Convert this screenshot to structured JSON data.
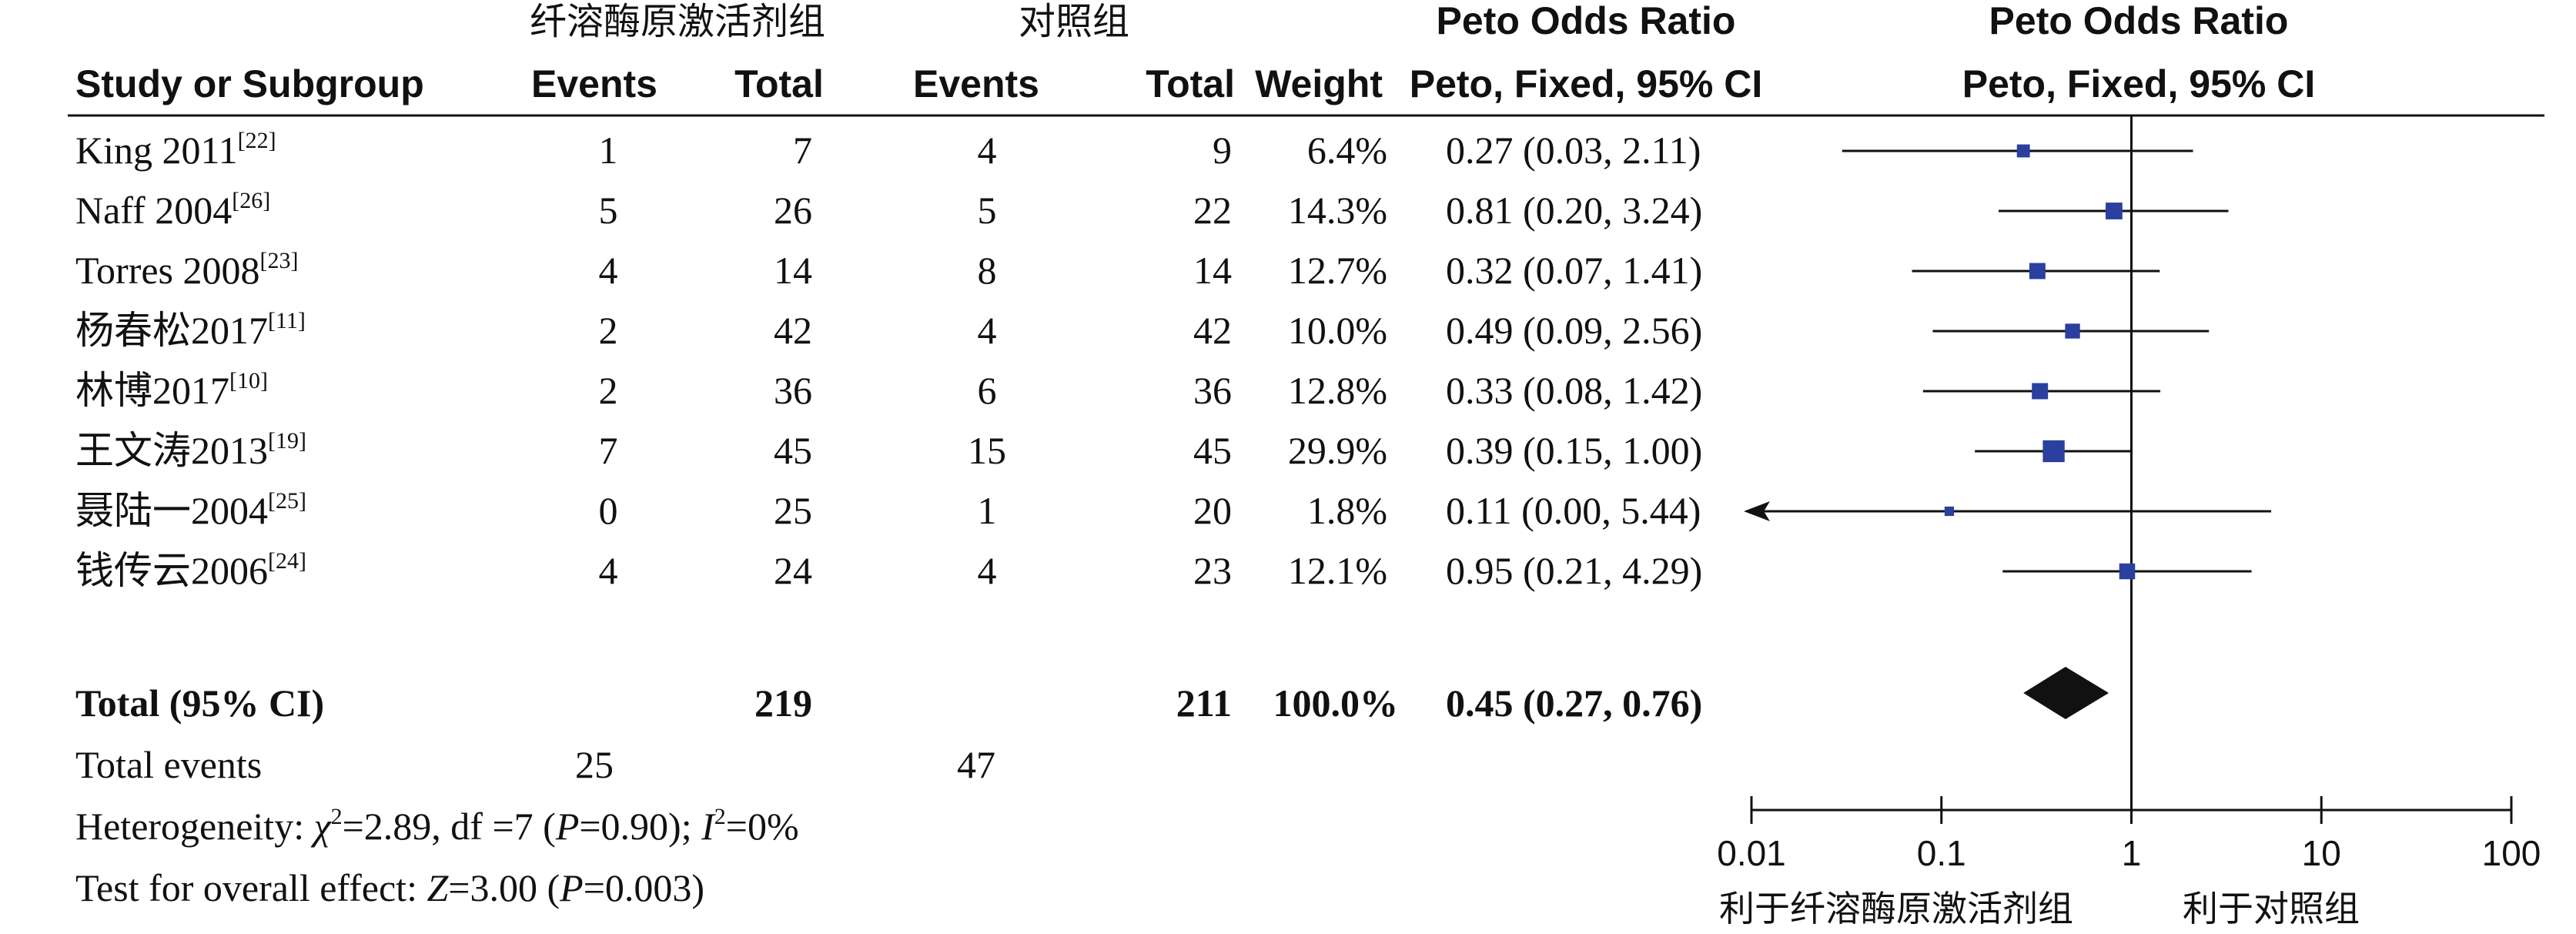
{
  "headers": {
    "study": "Study or Subgroup",
    "group1": "纤溶酶原激活剂组",
    "group2": "对照组",
    "events": "Events",
    "total": "Total",
    "weight": "Weight",
    "or_title": "Peto Odds Ratio",
    "or_subtitle": "Peto, Fixed, 95% CI",
    "plot_title": "Peto Odds Ratio",
    "plot_subtitle": "Peto, Fixed, 95% CI"
  },
  "summary": {
    "total_label": "Total (95% CI)",
    "total1": "219",
    "total2": "211",
    "weight": "100.0%",
    "ci_text": "0.45 (0.27, 0.76)",
    "events_label": "Total events",
    "events1": "25",
    "events2": "47",
    "heterogeneity": {
      "prefix": "Heterogeneity: ",
      "chi": "χ",
      "chi_sup": "2",
      "mid": "=2.89, df =7 (",
      "p": "P",
      "p_val": "=0.90); ",
      "i": "I",
      "i_sup": "2",
      "end": "=0%"
    },
    "overall": {
      "prefix": "Test for overall effect: ",
      "z": "Z",
      "z_val": "=3.00 (",
      "p": "P",
      "p_val": "=0.003)"
    }
  },
  "chart_data": {
    "type": "forest",
    "x_scale": "log",
    "xlim": [
      0.01,
      100
    ],
    "ticks": [
      "0.01",
      "0.1",
      "1",
      "10",
      "100"
    ],
    "x_label_left": "利于纤溶酶原激活剂组",
    "x_label_right": "利于对照组",
    "marker_color": "#2a3f9e",
    "studies": [
      {
        "name": "King 2011",
        "ref": "[22]",
        "e1": "1",
        "n1": "7",
        "e2": "4",
        "n2": "9",
        "weight": "6.4%",
        "ci_text": "0.27 (0.03, 2.11)",
        "or": 0.27,
        "lo": 0.03,
        "hi": 2.11,
        "w": 6.4,
        "arrow_left": false
      },
      {
        "name": "Naff 2004",
        "ref": "[26]",
        "e1": "5",
        "n1": "26",
        "e2": "5",
        "n2": "22",
        "weight": "14.3%",
        "ci_text": "0.81 (0.20, 3.24)",
        "or": 0.81,
        "lo": 0.2,
        "hi": 3.24,
        "w": 14.3,
        "arrow_left": false
      },
      {
        "name": "Torres 2008",
        "ref": "[23]",
        "e1": "4",
        "n1": "14",
        "e2": "8",
        "n2": "14",
        "weight": "12.7%",
        "ci_text": "0.32 (0.07, 1.41)",
        "or": 0.32,
        "lo": 0.07,
        "hi": 1.41,
        "w": 12.7,
        "arrow_left": false
      },
      {
        "name": "杨春松2017",
        "ref": "[11]",
        "e1": "2",
        "n1": "42",
        "e2": "4",
        "n2": "42",
        "weight": "10.0%",
        "ci_text": "0.49 (0.09, 2.56)",
        "or": 0.49,
        "lo": 0.09,
        "hi": 2.56,
        "w": 10.0,
        "arrow_left": false
      },
      {
        "name": "林博2017",
        "ref": "[10]",
        "e1": "2",
        "n1": "36",
        "e2": "6",
        "n2": "36",
        "weight": "12.8%",
        "ci_text": "0.33 (0.08, 1.42)",
        "or": 0.33,
        "lo": 0.08,
        "hi": 1.42,
        "w": 12.8,
        "arrow_left": false
      },
      {
        "name": "王文涛2013",
        "ref": "[19]",
        "e1": "7",
        "n1": "45",
        "e2": "15",
        "n2": "45",
        "weight": "29.9%",
        "ci_text": "0.39 (0.15, 1.00)",
        "or": 0.39,
        "lo": 0.15,
        "hi": 1.0,
        "w": 29.9,
        "arrow_left": false
      },
      {
        "name": "聂陆一2004",
        "ref": "[25]",
        "e1": "0",
        "n1": "25",
        "e2": "1",
        "n2": "20",
        "weight": "1.8%",
        "ci_text": "0.11 (0.00, 5.44)",
        "or": 0.11,
        "lo": 0.0,
        "hi": 5.44,
        "w": 1.8,
        "arrow_left": true
      },
      {
        "name": "钱传云2006",
        "ref": "[24]",
        "e1": "4",
        "n1": "24",
        "e2": "4",
        "n2": "23",
        "weight": "12.1%",
        "ci_text": "0.95 (0.21, 4.29)",
        "or": 0.95,
        "lo": 0.21,
        "hi": 4.29,
        "w": 12.1,
        "arrow_left": false
      }
    ],
    "pooled": {
      "or": 0.45,
      "lo": 0.27,
      "hi": 0.76
    }
  }
}
